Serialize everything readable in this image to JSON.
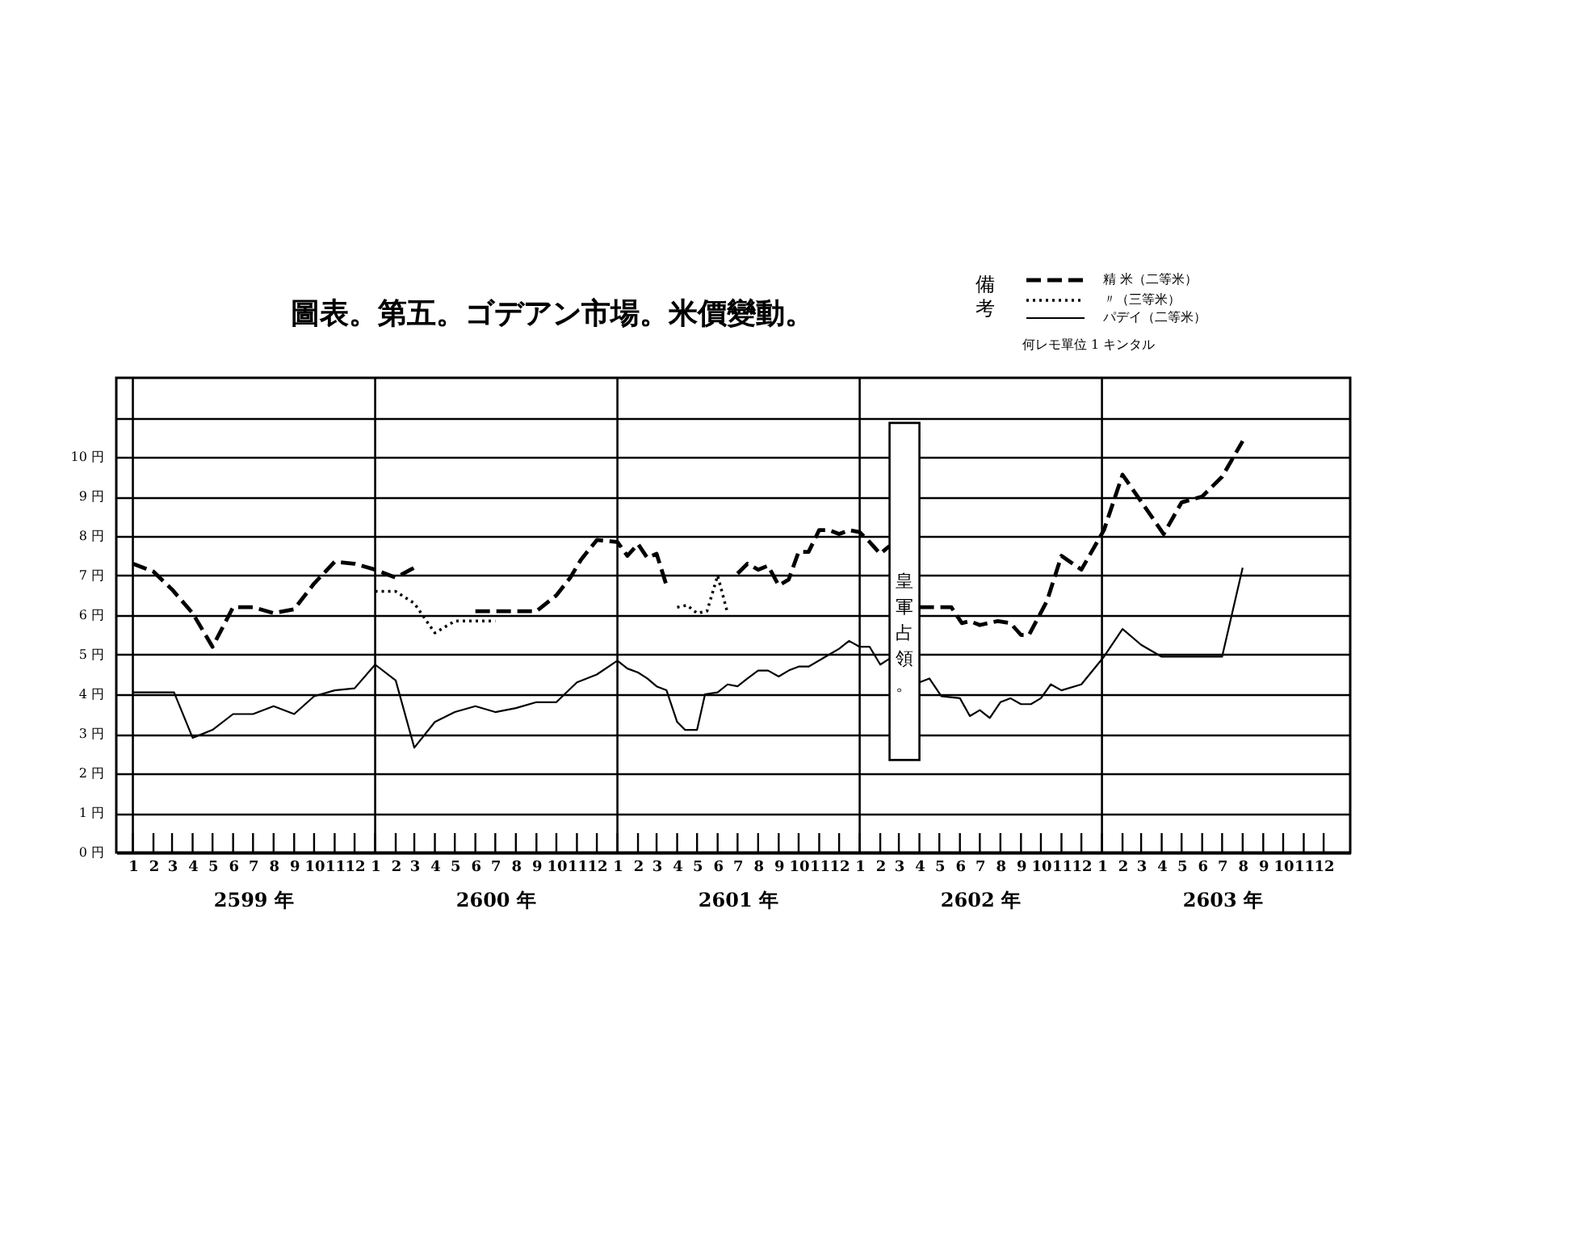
{
  "chart_data": {
    "type": "line",
    "title": "圖表。第五。ゴデアン市場。米價變動。",
    "legend_title": "備考",
    "legend": "top right",
    "grid": "y",
    "xlim": [
      "2598-12-07",
      "2604-01-10"
    ],
    "ylim": [
      0,
      12
    ],
    "xticks": [
      {
        "value": "2599-01",
        "label": "1"
      },
      {
        "value": "2599-02",
        "label": "2"
      },
      {
        "value": "2599-03",
        "label": "3"
      },
      {
        "value": "2599-04",
        "label": "4"
      },
      {
        "value": "2599-05",
        "label": "5"
      },
      {
        "value": "2599-06",
        "label": "6"
      },
      {
        "value": "2599-07",
        "label": "7"
      },
      {
        "value": "2599-08",
        "label": "8"
      },
      {
        "value": "2599-09",
        "label": "9"
      },
      {
        "value": "2599-10",
        "label": "10"
      },
      {
        "value": "2599-11",
        "label": "11"
      },
      {
        "value": "2599-12",
        "label": "12"
      },
      {
        "value": "2600-01",
        "label": "1"
      },
      {
        "value": "2600-02",
        "label": "2"
      },
      {
        "value": "2600-03",
        "label": "3"
      },
      {
        "value": "2600-04",
        "label": "4"
      },
      {
        "value": "2600-05",
        "label": "5"
      },
      {
        "value": "2600-06",
        "label": "6"
      },
      {
        "value": "2600-07",
        "label": "7"
      },
      {
        "value": "2600-08",
        "label": "8"
      },
      {
        "value": "2600-09",
        "label": "9"
      },
      {
        "value": "2600-10",
        "label": "10"
      },
      {
        "value": "2600-11",
        "label": "11"
      },
      {
        "value": "2600-12",
        "label": "12"
      },
      {
        "value": "2601-01",
        "label": "1"
      },
      {
        "value": "2601-02",
        "label": "2"
      },
      {
        "value": "2601-03",
        "label": "3"
      },
      {
        "value": "2601-04",
        "label": "4"
      },
      {
        "value": "2601-05",
        "label": "5"
      },
      {
        "value": "2601-06",
        "label": "6"
      },
      {
        "value": "2601-07",
        "label": "7"
      },
      {
        "value": "2601-08",
        "label": "8"
      },
      {
        "value": "2601-09",
        "label": "9"
      },
      {
        "value": "2601-10",
        "label": "10"
      },
      {
        "value": "2601-11",
        "label": "11"
      },
      {
        "value": "2601-12",
        "label": "12"
      },
      {
        "value": "2602-01",
        "label": "1"
      },
      {
        "value": "2602-02",
        "label": "2"
      },
      {
        "value": "2602-03",
        "label": "3"
      },
      {
        "value": "2602-04",
        "label": "4"
      },
      {
        "value": "2602-05",
        "label": "5"
      },
      {
        "value": "2602-06",
        "label": "6"
      },
      {
        "value": "2602-07",
        "label": "7"
      },
      {
        "value": "2602-08",
        "label": "8"
      },
      {
        "value": "2602-09",
        "label": "9"
      },
      {
        "value": "2602-10",
        "label": "10"
      },
      {
        "value": "2602-11",
        "label": "11"
      },
      {
        "value": "2602-12",
        "label": "12"
      },
      {
        "value": "2603-01",
        "label": "1"
      },
      {
        "value": "2603-02",
        "label": "2"
      },
      {
        "value": "2603-03",
        "label": "3"
      },
      {
        "value": "2603-04",
        "label": "4"
      },
      {
        "value": "2603-05",
        "label": "5"
      },
      {
        "value": "2603-06",
        "label": "6"
      },
      {
        "value": "2603-07",
        "label": "7"
      },
      {
        "value": "2603-08",
        "label": "8"
      },
      {
        "value": "2603-09",
        "label": "9"
      },
      {
        "value": "2603-10",
        "label": "10"
      },
      {
        "value": "2603-11",
        "label": "11"
      },
      {
        "value": "2603-12",
        "label": "12"
      }
    ],
    "x2lim": [
      "2598-12-07",
      "2604-01-10"
    ],
    "x2ticks": [
      {
        "value": "2599-07",
        "label": "2599 年"
      },
      {
        "value": "2600-07",
        "label": "2600 年"
      },
      {
        "value": "2601-07",
        "label": "2601 年"
      },
      {
        "value": "2602-07",
        "label": "2602 年"
      },
      {
        "value": "2603-07",
        "label": "2603 年"
      }
    ],
    "yticks": [
      {
        "value": 0,
        "label": "0 円"
      },
      {
        "value": 1,
        "label": "1 円"
      },
      {
        "value": 2,
        "label": "2 円"
      },
      {
        "value": 3,
        "label": "3 円"
      },
      {
        "value": 4,
        "label": "4 円"
      },
      {
        "value": 5,
        "label": "5 円"
      },
      {
        "value": 6,
        "label": "6 円"
      },
      {
        "value": 7,
        "label": "7 円"
      },
      {
        "value": 8,
        "label": "8 円"
      },
      {
        "value": 9,
        "label": "9 円"
      },
      {
        "value": 10,
        "label": "10 円"
      },
      {
        "value": 11,
        "label": null
      }
    ],
    "series": [
      {
        "name": "精 米（二等米）",
        "color": "#000000",
        "line_style": "dashed",
        "x": [
          "2599-01",
          "2599-02",
          "2599-03",
          "2599-04",
          "2599-05",
          "2599-06",
          "2599-07",
          "2599-08",
          "2599-09",
          "2599-10",
          "2599-11",
          "2599-12",
          "2600-01",
          "2600-02",
          "2600-03",
          "2600-04",
          "2600-06",
          "2600-07",
          "2600-08",
          "2600-09",
          "2600-10",
          "2600-10-22",
          "2600-11-07",
          "2600-12",
          "2601-01",
          "2601-01-16",
          "2601-02",
          "2601-02-15",
          "2601-03",
          "2601-03-16",
          "2601-05",
          "2601-07",
          "2601-07-16",
          "2601-08",
          "2601-08-16",
          "2601-09",
          "2601-09-16",
          "2601-10",
          "2601-10-16",
          "2601-11",
          "2601-11-16",
          "2601-12",
          "2601-12-16",
          "2602-01",
          "2602-01-16",
          "2602-02",
          "2602-02-15",
          "2602-03",
          "2602-04",
          "2602-05-19",
          "2602-06-04",
          "2602-06-16",
          "2602-07",
          "2602-07-28",
          "2602-08-16",
          "2602-09",
          "2602-09-13",
          "2602-10-10",
          "2602-11",
          "2602-12",
          "2603-01-04",
          "2603-02",
          "2603-04-04",
          "2603-05",
          "2603-06",
          "2603-07",
          "2603-08"
        ],
        "values": [
          7.3,
          7.1,
          6.65,
          6.05,
          5.2,
          6.2,
          6.2,
          6.05,
          6.15,
          6.8,
          7.35,
          7.3,
          7.15,
          6.95,
          7.2,
          null,
          6.1,
          6.1,
          6.1,
          6.1,
          6.5,
          6.95,
          7.4,
          7.9,
          7.85,
          7.5,
          7.8,
          7.45,
          7.55,
          6.75,
          null,
          7.05,
          7.3,
          7.15,
          7.25,
          6.75,
          6.9,
          7.6,
          7.6,
          8.15,
          8.15,
          8.05,
          8.15,
          8.1,
          7.85,
          7.55,
          7.75,
          null,
          6.2,
          6.2,
          5.8,
          5.85,
          5.75,
          5.85,
          5.8,
          5.5,
          5.5,
          6.35,
          7.5,
          7.15,
          8.15,
          9.55,
          8.05,
          8.85,
          9.0,
          9.5,
          10.4
        ]
      },
      {
        "name": "〃（三等米）",
        "color": "#000000",
        "line_style": "dotted",
        "x": [
          "2600-01",
          "2600-02",
          "2600-03",
          "2600-04",
          "2600-05",
          "2600-06",
          "2600-07",
          "2600-08",
          "2601-04",
          "2601-04-16",
          "2601-05",
          "2601-05-16",
          "2601-06",
          "2601-06-16"
        ],
        "values": [
          6.6,
          6.6,
          6.3,
          5.55,
          5.85,
          5.85,
          5.85,
          null,
          6.2,
          6.25,
          6.05,
          6.1,
          7.0,
          6.05
        ]
      },
      {
        "name": "パデイ（二等米）",
        "color": "#000000",
        "line_style": "solid",
        "x": [
          "2599-01",
          "2599-03-04",
          "2599-04",
          "2599-05",
          "2599-06",
          "2599-07",
          "2599-08",
          "2599-09",
          "2599-10",
          "2599-11",
          "2599-12",
          "2600-01",
          "2600-02",
          "2600-03",
          "2600-04",
          "2600-05",
          "2600-06",
          "2600-07",
          "2600-08",
          "2600-09",
          "2600-10",
          "2600-11",
          "2600-12",
          "2601-01",
          "2601-01-16",
          "2601-02",
          "2601-02-15",
          "2601-03",
          "2601-03-16",
          "2601-04",
          "2601-04-13",
          "2601-05",
          "2601-05-13",
          "2601-06",
          "2601-06-16",
          "2601-07",
          "2601-07-16",
          "2601-08",
          "2601-08-16",
          "2601-09",
          "2601-09-16",
          "2601-10",
          "2601-10-16",
          "2601-12",
          "2601-12-16",
          "2602-01",
          "2602-01-16",
          "2602-02",
          "2602-02-15",
          "2602-03",
          "2602-04",
          "2602-04-16",
          "2602-05-04",
          "2602-06",
          "2602-06-16",
          "2602-07",
          "2602-07-16",
          "2602-08",
          "2602-08-16",
          "2602-09",
          "2602-09-16",
          "2602-10",
          "2602-10-16",
          "2602-11",
          "2602-12",
          "2603-01-04",
          "2603-02",
          "2603-03",
          "2603-04",
          "2603-07",
          "2603-08"
        ],
        "values": [
          4.05,
          4.05,
          2.9,
          3.1,
          3.5,
          3.5,
          3.7,
          3.5,
          3.95,
          4.1,
          4.15,
          4.75,
          4.35,
          2.65,
          3.3,
          3.55,
          3.7,
          3.55,
          3.65,
          3.8,
          3.8,
          4.3,
          4.5,
          4.85,
          4.65,
          4.55,
          4.4,
          4.2,
          4.1,
          3.3,
          3.1,
          3.1,
          4.0,
          4.05,
          4.25,
          4.2,
          4.4,
          4.6,
          4.6,
          4.45,
          4.6,
          4.7,
          4.7,
          5.15,
          5.35,
          5.2,
          5.2,
          4.75,
          4.9,
          null,
          4.3,
          4.4,
          3.95,
          3.9,
          3.45,
          3.6,
          3.4,
          3.8,
          3.9,
          3.75,
          3.75,
          3.9,
          4.25,
          4.1,
          4.25,
          4.95,
          5.65,
          5.25,
          4.95,
          4.95,
          7.2
        ]
      }
    ],
    "ref_lines": [
      {
        "axis": "x",
        "value": "2599-01",
        "color": "#000000"
      },
      {
        "axis": "x",
        "value": "2600-01",
        "color": "#000000"
      },
      {
        "axis": "x",
        "value": "2601-01",
        "color": "#000000"
      },
      {
        "axis": "x",
        "value": "2602-01",
        "color": "#000000"
      },
      {
        "axis": "x",
        "value": "2603-01",
        "color": "#000000"
      }
    ],
    "bands": [
      {
        "axis": "x",
        "from": "2602-02-15",
        "to": "2602-04",
        "label": "皇軍占領。",
        "color": "#ffffff"
      }
    ],
    "annotations": [
      "何レモ單位 1 キンタル"
    ]
  }
}
